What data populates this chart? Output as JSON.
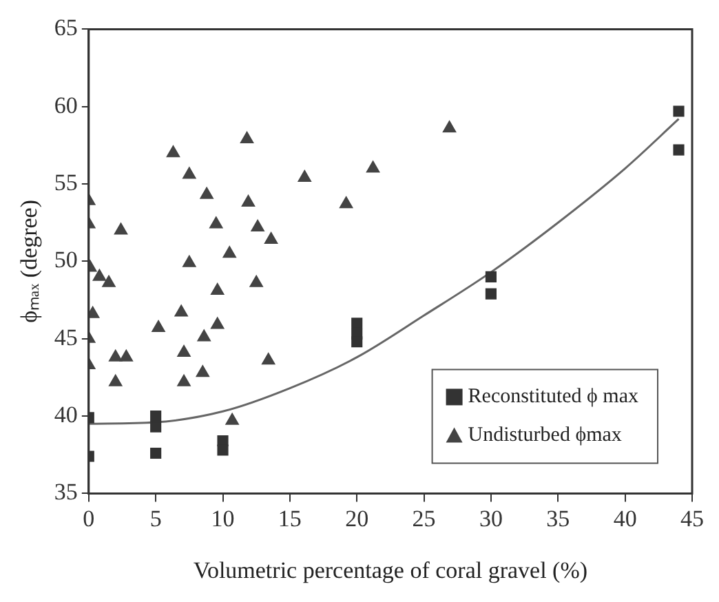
{
  "chart_data": {
    "type": "scatter",
    "xlabel": "Volumetric percentage of coral gravel (%)",
    "ylabel": "ϕₘₐₓ (degree)",
    "xlim": [
      0,
      45
    ],
    "xticks": [
      0,
      5,
      10,
      15,
      20,
      25,
      30,
      35,
      40,
      45
    ],
    "ylim": [
      35,
      65
    ],
    "yticks": [
      35,
      40,
      45,
      50,
      55,
      60,
      65
    ],
    "grid": false,
    "legend": "bottom right",
    "series": [
      {
        "name": "Reconstituted ϕ max",
        "marker": "square",
        "color": "#333333",
        "x": [
          0,
          0,
          5,
          5,
          5,
          10,
          10,
          20,
          20,
          20,
          30,
          30,
          44,
          44
        ],
        "values": [
          39.9,
          37.4,
          40.0,
          39.3,
          37.6,
          38.4,
          37.8,
          46.0,
          45.3,
          44.8,
          49.0,
          47.9,
          59.7,
          57.2
        ]
      },
      {
        "name": "Undisturbed ϕmax",
        "marker": "triangle",
        "color": "#444444",
        "x": [
          0,
          0,
          2.4,
          6.3,
          7.5,
          8.8,
          11.8,
          11.9,
          9.5,
          12.6,
          13.6,
          10.5,
          7.5,
          16.1,
          0.1,
          0.8,
          1.5,
          9.6,
          12.5,
          0.3,
          0,
          0,
          2.0,
          2.8,
          2.0,
          5.2,
          6.9,
          7.1,
          7.1,
          8.6,
          8.5,
          9.6,
          13.4,
          10.7,
          19.2,
          21.2,
          26.9
        ],
        "values": [
          53.9,
          52.4,
          52.0,
          57.0,
          55.6,
          54.3,
          57.9,
          53.8,
          52.4,
          52.2,
          51.4,
          50.5,
          49.9,
          55.4,
          49.6,
          49.0,
          48.6,
          48.1,
          48.6,
          46.6,
          45.0,
          43.3,
          43.8,
          43.8,
          42.2,
          45.7,
          46.7,
          44.1,
          42.2,
          45.1,
          42.8,
          45.9,
          43.6,
          39.7,
          53.7,
          56.0,
          58.6
        ]
      },
      {
        "type": "line",
        "marker": "none",
        "line_style": "solid",
        "color": "#666666",
        "x": [
          0,
          5,
          10,
          15,
          20,
          25,
          30,
          35,
          40,
          44
        ],
        "values": [
          39.5,
          39.6,
          40.3,
          41.8,
          43.8,
          46.5,
          49.3,
          52.5,
          56.0,
          59.2
        ]
      }
    ]
  }
}
